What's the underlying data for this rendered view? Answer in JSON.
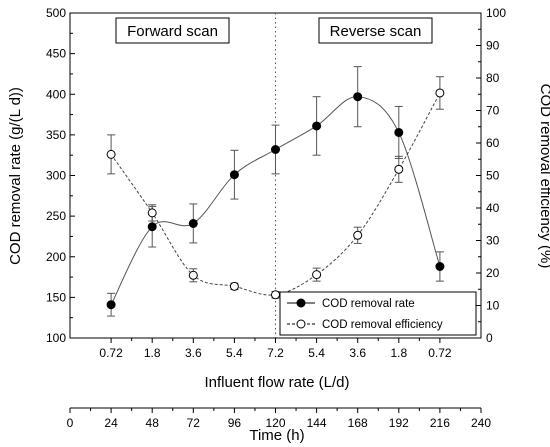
{
  "chart_data": {
    "type": "line",
    "x_categories": [
      "0.72",
      "1.8",
      "3.6",
      "5.4",
      "7.2",
      "5.4",
      "3.6",
      "1.8",
      "0.72"
    ],
    "xlabel": "Influent flow rate (L/d)",
    "ylabel_left": "COD removal rate (g/(L d))",
    "ylabel_right": "COD removal efficiency (%)",
    "ylim_left": [
      100,
      500
    ],
    "ylim_right": [
      0,
      100
    ],
    "y_ticks_left": [
      "100",
      "150",
      "200",
      "250",
      "300",
      "350",
      "400",
      "450",
      "500"
    ],
    "y_ticks_right": [
      "0",
      "10",
      "20",
      "30",
      "40",
      "50",
      "60",
      "70",
      "80",
      "90",
      "100"
    ],
    "annotations": {
      "forward": "Forward scan",
      "reverse": "Reverse scan",
      "divider_at_time": 120
    },
    "series": [
      {
        "name": "COD removal rate",
        "axis": "left",
        "marker": "filled-circle",
        "line": "solid",
        "values": [
          141,
          237,
          241,
          301,
          332,
          361,
          397,
          353,
          188
        ],
        "errors": [
          14,
          25,
          24,
          30,
          30,
          36,
          37,
          32,
          18
        ]
      },
      {
        "name": "COD removal efficiency",
        "axis": "right",
        "marker": "open-circle",
        "line": "dashed",
        "values": [
          56.5,
          38.5,
          19.3,
          15.9,
          13.3,
          19.5,
          31.6,
          51.9,
          75.4
        ],
        "errors": [
          6,
          2.5,
          2,
          1,
          1,
          2,
          2.5,
          4,
          5
        ]
      }
    ],
    "time_axis": {
      "label": "Time (h)",
      "ticks": [
        "0",
        "24",
        "48",
        "72",
        "96",
        "120",
        "144",
        "168",
        "192",
        "216",
        "240"
      ],
      "range": [
        0,
        240
      ],
      "point_times": [
        24,
        48,
        72,
        96,
        120,
        144,
        168,
        192,
        216
      ]
    }
  }
}
